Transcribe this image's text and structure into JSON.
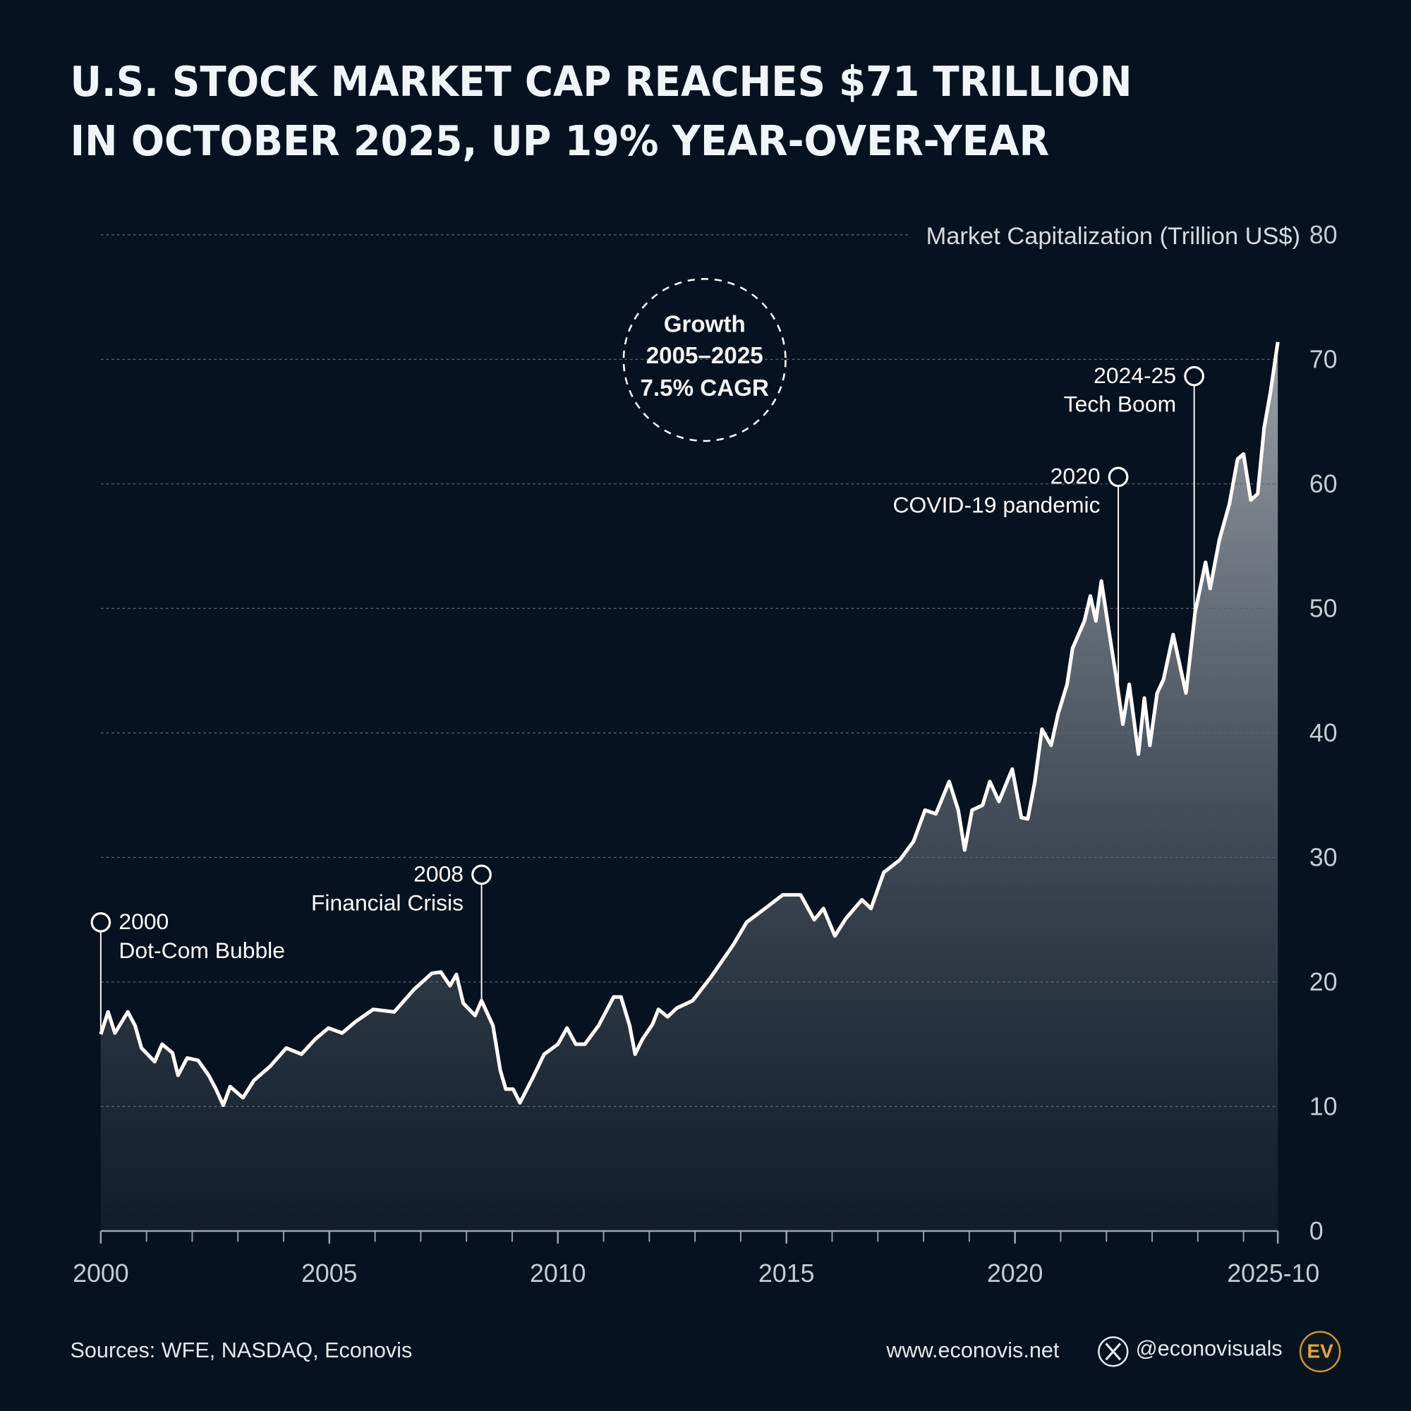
{
  "chart_data": {
    "type": "area-line",
    "title": [
      "U.S. STOCK MARKET CAP REACHES $71 TRILLION",
      "IN OCTOBER 2025, UP 19% YEAR-OVER-YEAR"
    ],
    "y_label": "Market Capitalization (Trillion US$)",
    "color": "#ffffff",
    "x": [
      2000.0,
      2000.16,
      2000.31,
      2000.59,
      2000.75,
      2000.89,
      2001.18,
      2001.34,
      2001.57,
      2001.69,
      2001.89,
      2002.13,
      2002.36,
      2002.52,
      2002.68,
      2002.83,
      2003.11,
      2003.35,
      2003.7,
      2004.06,
      2004.39,
      2004.69,
      2004.98,
      2005.28,
      2005.57,
      2005.96,
      2006.42,
      2006.85,
      2007.24,
      2007.44,
      2007.64,
      2007.78,
      2007.93,
      2008.19,
      2008.33,
      2008.58,
      2008.74,
      2008.86,
      2009.02,
      2009.17,
      2009.45,
      2009.7,
      2010.0,
      2010.2,
      2010.39,
      2010.59,
      2010.89,
      2011.22,
      2011.38,
      2011.57,
      2011.69,
      2011.85,
      2012.07,
      2012.2,
      2012.4,
      2012.6,
      2012.95,
      2013.35,
      2013.84,
      2014.13,
      2014.53,
      2014.92,
      2015.31,
      2015.61,
      2015.81,
      2016.06,
      2016.3,
      2016.65,
      2016.85,
      2017.13,
      2017.48,
      2017.78,
      2018.03,
      2018.27,
      2018.56,
      2018.76,
      2018.9,
      2019.06,
      2019.29,
      2019.45,
      2019.65,
      2019.94,
      2020.14,
      2020.28,
      2020.43,
      2020.59,
      2020.79,
      2020.94,
      2021.14,
      2021.26,
      2021.52,
      2021.65,
      2021.77,
      2021.89,
      2022.05,
      2022.2,
      2022.36,
      2022.5,
      2022.7,
      2022.83,
      2022.95,
      2023.11,
      2023.25,
      2023.46,
      2023.74,
      2023.94,
      2024.17,
      2024.27,
      2024.47,
      2024.69,
      2024.87,
      2025.0,
      2025.16,
      2025.31,
      2025.45,
      2025.59,
      2025.75
    ],
    "values": [
      15.8,
      17.6,
      15.9,
      17.6,
      16.5,
      14.7,
      13.6,
      15.0,
      14.3,
      12.5,
      13.9,
      13.7,
      12.5,
      11.4,
      10.1,
      11.6,
      10.7,
      12.1,
      13.2,
      14.7,
      14.2,
      15.4,
      16.3,
      15.9,
      16.8,
      17.8,
      17.6,
      19.4,
      20.7,
      20.8,
      19.7,
      20.6,
      18.3,
      17.3,
      18.5,
      16.5,
      12.9,
      11.4,
      11.4,
      10.3,
      12.3,
      14.2,
      15.0,
      16.3,
      15.0,
      15.0,
      16.5,
      18.8,
      18.8,
      16.5,
      14.2,
      15.4,
      16.6,
      17.8,
      17.2,
      17.9,
      18.5,
      20.4,
      23.0,
      24.8,
      25.9,
      27.0,
      27.0,
      25.0,
      25.9,
      23.7,
      25.1,
      26.6,
      25.9,
      28.8,
      29.8,
      31.3,
      33.8,
      33.5,
      36.1,
      33.8,
      30.6,
      33.8,
      34.2,
      36.1,
      34.5,
      37.1,
      33.2,
      33.1,
      36.0,
      40.3,
      39.0,
      41.5,
      43.9,
      46.8,
      49.0,
      51.0,
      49.0,
      52.2,
      48.3,
      44.8,
      40.7,
      43.9,
      38.3,
      42.8,
      39.0,
      43.2,
      44.3,
      47.9,
      43.2,
      49.7,
      53.7,
      51.6,
      55.5,
      58.4,
      62.0,
      62.4,
      58.7,
      59.2,
      64.5,
      67.4,
      71.4
    ],
    "xlim": [
      2000,
      2025.75
    ],
    "xticks": [
      2000,
      2005,
      2010,
      2015,
      2020,
      {
        "value": 2025.75,
        "label": "2025-10"
      }
    ],
    "xminorticks": [
      2001,
      2002,
      2003,
      2004,
      2006,
      2007,
      2008,
      2009,
      2011,
      2012,
      2013,
      2014,
      2016,
      2017,
      2018,
      2019,
      2021,
      2022,
      2023,
      2024,
      2025
    ],
    "ylim": [
      0,
      80
    ],
    "yticks": [
      0,
      10,
      20,
      30,
      40,
      50,
      60,
      70,
      80
    ],
    "grid": true,
    "annotations": [
      {
        "x": 2000,
        "label": "2000",
        "text": "Dot-Com Bubble"
      },
      {
        "x": 2008.33,
        "label": "2008",
        "text": "Financial Crisis"
      },
      {
        "x": 2022.26,
        "label": "2020",
        "text": "COVID-19 pandemic"
      },
      {
        "x": 2023.92,
        "label": "2024-25",
        "text": "Tech Boom"
      }
    ],
    "callout": [
      "Growth",
      "2005–2025",
      "7.5% CAGR"
    ]
  },
  "footer": {
    "source": "Sources: WFE, NASDAQ, Econovis",
    "website": "www.econovis.net",
    "handle": "@econovisuals",
    "logo": "EV"
  }
}
